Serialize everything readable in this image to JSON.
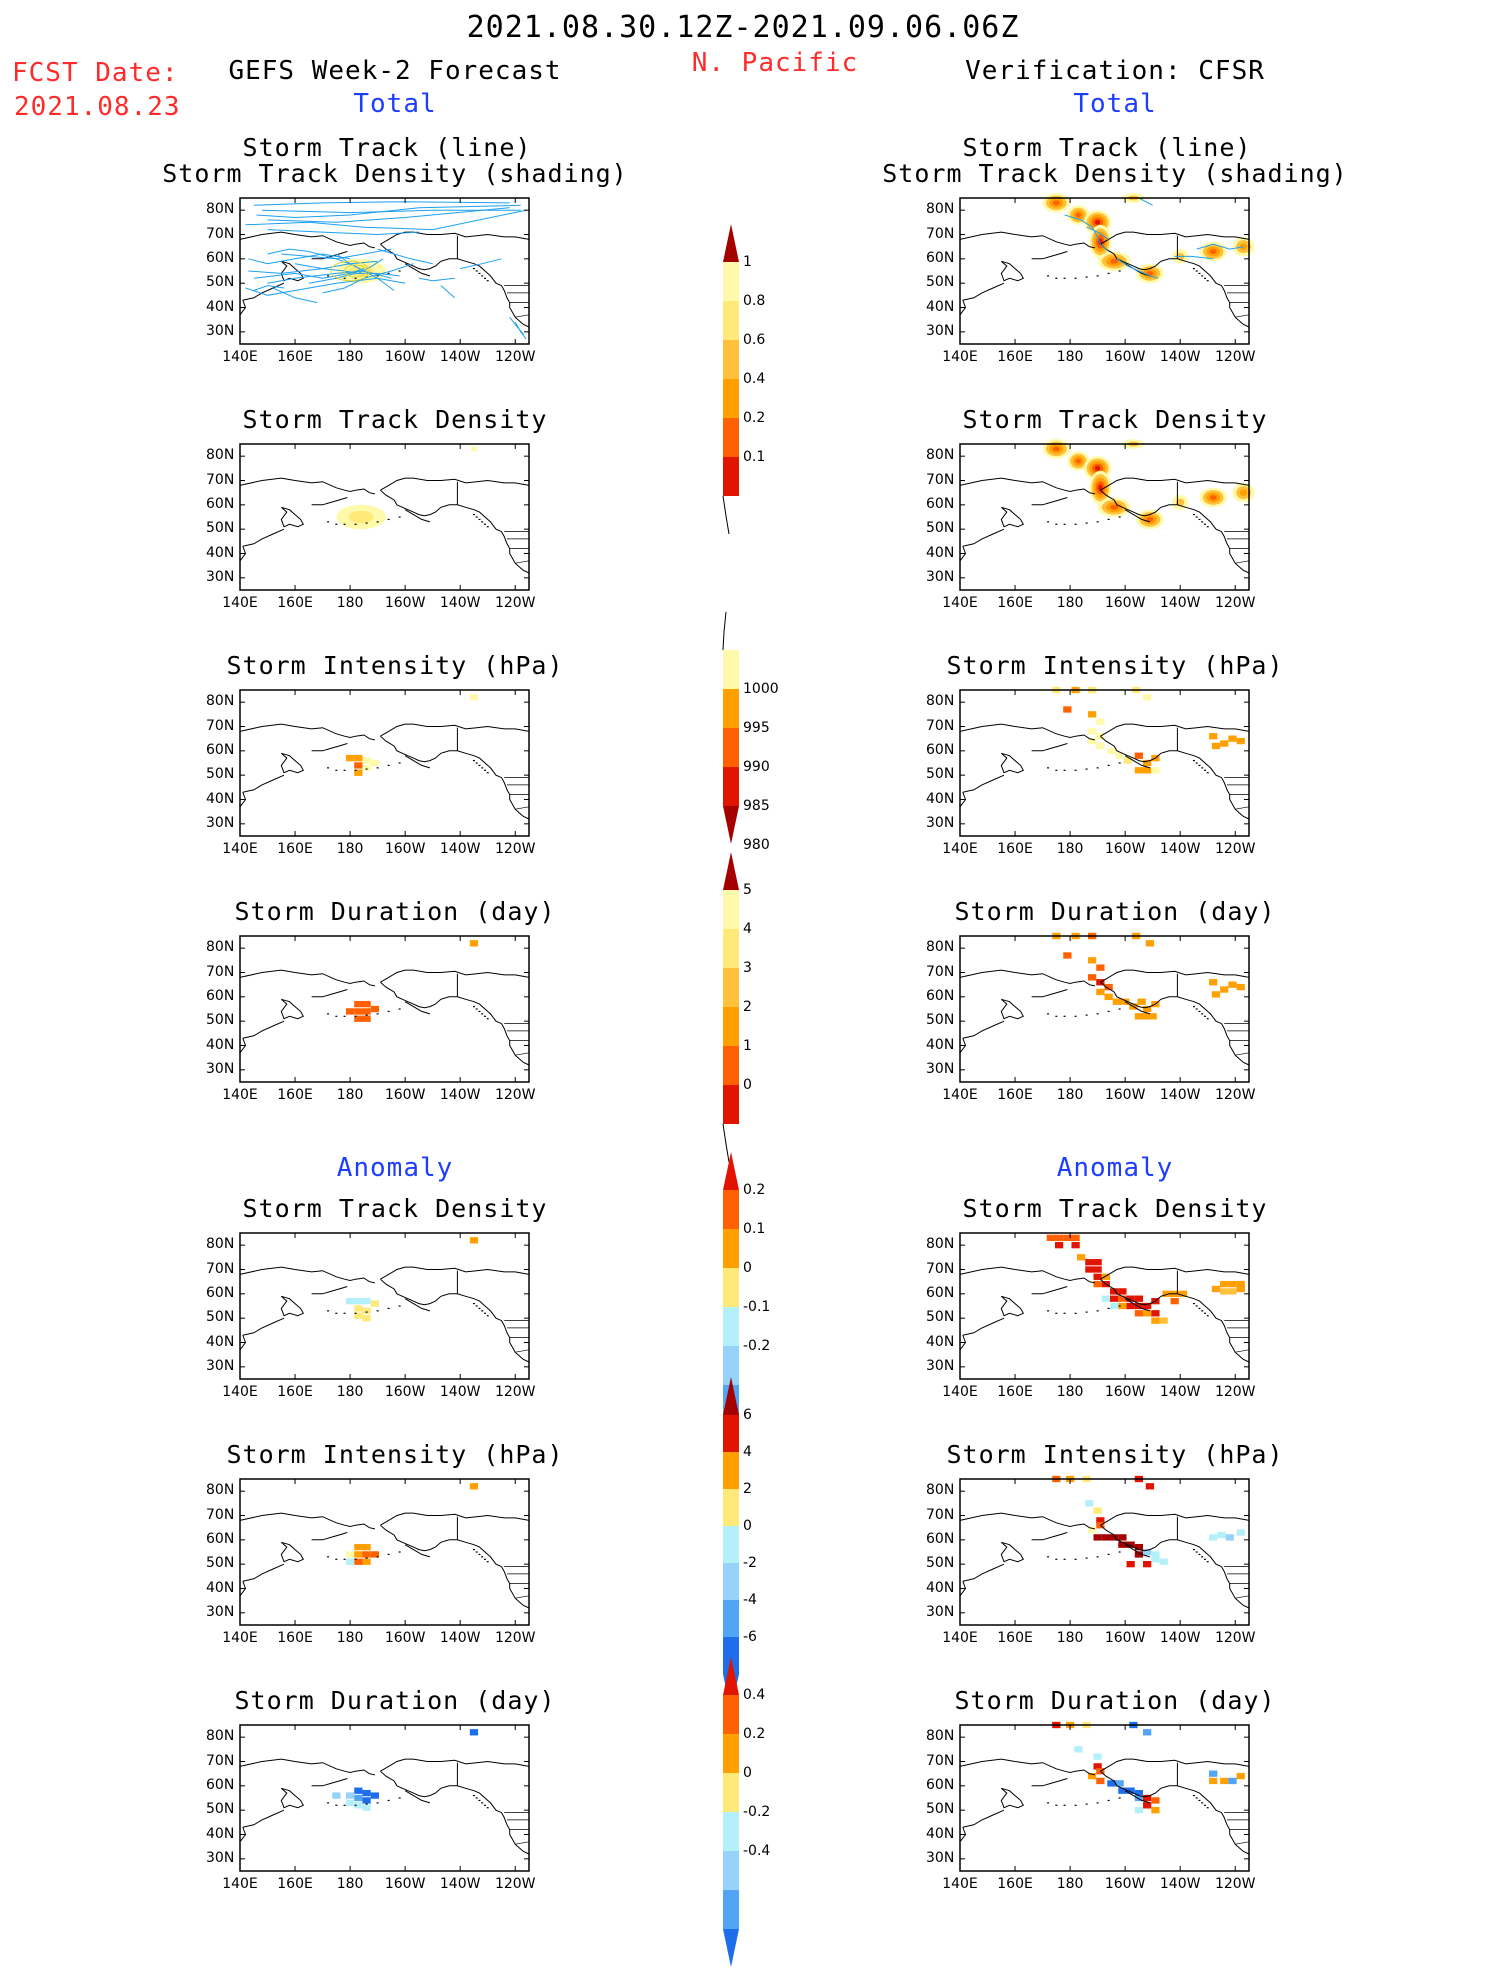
{
  "header": {
    "date_range": "2021.08.30.12Z-2021.09.06.06Z",
    "region": "N. Pacific",
    "fcst_label": "FCST Date:",
    "fcst_date": "2021.08.23",
    "left_title": "GEFS Week-2 Forecast",
    "right_title": "Verification: CFSR",
    "section_total": "Total",
    "section_anomaly": "Anomaly"
  },
  "panel_titles": {
    "track_line": "Storm Track (line)",
    "track_shading": "Storm Track Density (shading)",
    "density": "Storm Track Density",
    "intensity": "Storm Intensity (hPa)",
    "duration": "Storm Duration (day)"
  },
  "axes": {
    "x_ticks": [
      "140E",
      "160E",
      "180",
      "160W",
      "140W",
      "120W"
    ],
    "y_ticks": [
      "80N",
      "70N",
      "60N",
      "50N",
      "40N",
      "30N"
    ]
  },
  "colors": {
    "light_yellow": "#fffaaa",
    "yellow": "#ffe978",
    "light_orange": "#ffc03c",
    "orange": "#ffa000",
    "dark_orange": "#ff6000",
    "red": "#e11400",
    "dark_red": "#a50000",
    "light_cyan": "#b4f0fa",
    "light_blue": "#96d2fa",
    "blue": "#50a5f5",
    "dark_blue": "#1e6eeb",
    "track_line": "#1ea0f0"
  },
  "colorbars": [
    {
      "labels": [
        "1",
        "0.8",
        "0.6",
        "0.4",
        "0.2",
        "0.1"
      ]
    },
    {
      "labels": [
        "1000",
        "995",
        "990",
        "985",
        "980"
      ]
    },
    {
      "labels": [
        "5",
        "4",
        "3",
        "2",
        "1",
        "0"
      ]
    },
    {
      "labels": [
        "0.2",
        "0.1",
        "0",
        "-0.1",
        "-0.2"
      ]
    },
    {
      "labels": [
        "6",
        "4",
        "2",
        "0",
        "-2",
        "-4",
        "-6"
      ]
    },
    {
      "labels": [
        "0.4",
        "0.2",
        "0",
        "-0.2",
        "-0.4"
      ]
    }
  ],
  "chart_data": [
    {
      "type": "heatmap",
      "panel": "GEFS total storm track (line) + density (shading)",
      "xlim": [
        "140E",
        "120W"
      ],
      "ylim": [
        "25N",
        "85N"
      ],
      "cells": [
        {
          "lon": 180,
          "lat": 55,
          "value": 0.1
        },
        {
          "lon": 185,
          "lat": 53,
          "value": 0.2
        }
      ]
    },
    {
      "type": "heatmap",
      "panel": "CFSR total storm track (line) + density (shading)",
      "cells": [
        {
          "lon": 175,
          "lat": 82,
          "value": 0.6
        },
        {
          "lon": 185,
          "lat": 75,
          "value": 0.8
        },
        {
          "lon": 190,
          "lat": 67,
          "value": 1.0
        },
        {
          "lon": 195,
          "lat": 60,
          "value": 0.6
        },
        {
          "lon": 205,
          "lat": 55,
          "value": 0.6
        },
        {
          "lon": 232,
          "lat": 62,
          "value": 0.4
        }
      ]
    },
    {
      "type": "heatmap",
      "panel": "GEFS total storm track density",
      "cells": [
        {
          "lon": 183,
          "lat": 55,
          "value": 0.1
        },
        {
          "lon": 225,
          "lat": 82,
          "value": 0.1
        }
      ]
    },
    {
      "type": "heatmap",
      "panel": "CFSR total storm track density",
      "cells": [
        {
          "lon": 175,
          "lat": 82,
          "value": 0.6
        },
        {
          "lon": 185,
          "lat": 75,
          "value": 0.8
        },
        {
          "lon": 190,
          "lat": 67,
          "value": 1.0
        },
        {
          "lon": 195,
          "lat": 60,
          "value": 0.6
        },
        {
          "lon": 208,
          "lat": 55,
          "value": 0.6
        },
        {
          "lon": 232,
          "lat": 62,
          "value": 0.4
        }
      ]
    },
    {
      "type": "heatmap",
      "panel": "GEFS total storm intensity (hPa)",
      "cells": [
        {
          "lon": 180,
          "lat": 57,
          "value": 995
        },
        {
          "lon": 185,
          "lat": 55,
          "value": 990
        },
        {
          "lon": 225,
          "lat": 82,
          "value": 1000
        }
      ]
    },
    {
      "type": "heatmap",
      "panel": "CFSR total storm intensity (hPa)",
      "cells": [
        {
          "lon": 188,
          "lat": 72,
          "value": 995
        },
        {
          "lon": 200,
          "lat": 58,
          "value": 995
        },
        {
          "lon": 208,
          "lat": 52,
          "value": 995
        },
        {
          "lon": 232,
          "lat": 62,
          "value": 995
        }
      ]
    },
    {
      "type": "heatmap",
      "panel": "GEFS total storm duration (day)",
      "cells": [
        {
          "lon": 183,
          "lat": 55,
          "value": 3
        },
        {
          "lon": 225,
          "lat": 82,
          "value": 2
        }
      ]
    },
    {
      "type": "heatmap",
      "panel": "CFSR total storm duration (day)",
      "cells": [
        {
          "lon": 190,
          "lat": 68,
          "value": 3
        },
        {
          "lon": 200,
          "lat": 58,
          "value": 2
        },
        {
          "lon": 210,
          "lat": 52,
          "value": 2
        }
      ]
    },
    {
      "type": "heatmap",
      "panel": "GEFS anomaly storm track density",
      "cells": [
        {
          "lon": 183,
          "lat": 53,
          "value": 0.1
        },
        {
          "lon": 180,
          "lat": 57,
          "value": -0.05
        },
        {
          "lon": 225,
          "lat": 82,
          "value": 0.1
        }
      ]
    },
    {
      "type": "heatmap",
      "panel": "CFSR anomaly storm track density",
      "cells": [
        {
          "lon": 175,
          "lat": 82,
          "value": 0.2
        },
        {
          "lon": 188,
          "lat": 70,
          "value": 0.2
        },
        {
          "lon": 195,
          "lat": 60,
          "value": 0.2
        },
        {
          "lon": 208,
          "lat": 55,
          "value": 0.2
        },
        {
          "lon": 232,
          "lat": 62,
          "value": 0.1
        }
      ]
    },
    {
      "type": "heatmap",
      "panel": "GEFS anomaly storm intensity (hPa)",
      "cells": [
        {
          "lon": 185,
          "lat": 55,
          "value": 4
        },
        {
          "lon": 225,
          "lat": 82,
          "value": 4
        }
      ]
    },
    {
      "type": "heatmap",
      "panel": "CFSR anomaly storm intensity (hPa)",
      "cells": [
        {
          "lon": 195,
          "lat": 60,
          "value": 6
        },
        {
          "lon": 205,
          "lat": 58,
          "value": 6
        },
        {
          "lon": 213,
          "lat": 52,
          "value": -2
        }
      ]
    },
    {
      "type": "heatmap",
      "panel": "GEFS anomaly storm duration (day)",
      "cells": [
        {
          "lon": 183,
          "lat": 56,
          "value": -0.4
        },
        {
          "lon": 180,
          "lat": 53,
          "value": -0.1
        },
        {
          "lon": 225,
          "lat": 82,
          "value": -0.4
        }
      ]
    },
    {
      "type": "heatmap",
      "panel": "CFSR anomaly storm duration (day)",
      "cells": [
        {
          "lon": 195,
          "lat": 60,
          "value": -0.4
        },
        {
          "lon": 205,
          "lat": 58,
          "value": -0.4
        },
        {
          "lon": 210,
          "lat": 52,
          "value": 0.4
        }
      ]
    }
  ]
}
